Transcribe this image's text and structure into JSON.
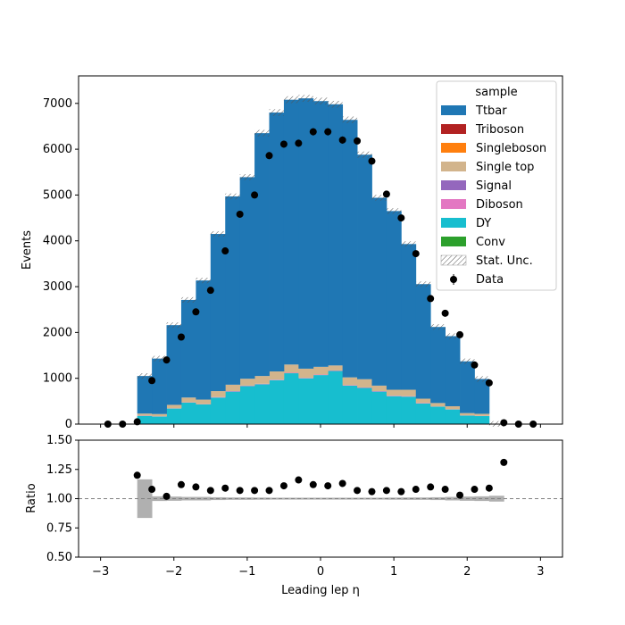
{
  "chart_data": [
    {
      "type": "bar",
      "stacked": true,
      "ylabel": "Events",
      "ylim": [
        0,
        7600
      ],
      "xlim": [
        -3.3,
        3.3
      ],
      "yticks": [
        0,
        1000,
        2000,
        3000,
        4000,
        5000,
        6000,
        7000
      ],
      "x_bin_edges": [
        -2.5,
        -2.3,
        -2.1,
        -1.9,
        -1.7,
        -1.5,
        -1.3,
        -1.1,
        -0.9,
        -0.7,
        -0.5,
        -0.3,
        -0.1,
        0.1,
        0.3,
        0.5,
        0.7,
        0.9,
        1.1,
        1.3,
        1.5,
        1.7,
        1.9,
        2.1,
        2.3,
        2.5
      ],
      "legend": {
        "title": "sample",
        "placement": "top-right",
        "entries": [
          "Ttbar",
          "Triboson",
          "Singleboson",
          "Single top",
          "Signal",
          "Diboson",
          "DY",
          "Conv",
          "Stat. Unc.",
          "Data"
        ]
      },
      "colors": {
        "Ttbar": "#1f77b4",
        "Triboson": "#b22222",
        "Singleboson": "#ff7f0e",
        "Single top": "#d2b48c",
        "Signal": "#9467bd",
        "Diboson": "#e377c2",
        "DY": "#17becf",
        "Conv": "#2ca02c",
        "Data": "#000000"
      },
      "series": [
        {
          "name": "Conv",
          "values": [
            5,
            5,
            10,
            10,
            10,
            10,
            10,
            10,
            10,
            10,
            10,
            10,
            10,
            10,
            10,
            10,
            10,
            10,
            10,
            10,
            10,
            10,
            10,
            5,
            5
          ]
        },
        {
          "name": "DY",
          "values": [
            175,
            160,
            330,
            460,
            420,
            570,
            700,
            820,
            860,
            950,
            1100,
            990,
            1060,
            1150,
            830,
            780,
            700,
            600,
            590,
            440,
            370,
            310,
            175,
            170,
            0
          ]
        },
        {
          "name": "Diboson",
          "values": [
            5,
            5,
            5,
            5,
            5,
            10,
            10,
            10,
            10,
            10,
            10,
            10,
            10,
            10,
            10,
            10,
            10,
            10,
            10,
            10,
            5,
            5,
            5,
            5,
            0
          ]
        },
        {
          "name": "Signal",
          "values": [
            0,
            0,
            0,
            0,
            0,
            0,
            0,
            0,
            0,
            0,
            0,
            0,
            0,
            0,
            0,
            0,
            0,
            0,
            0,
            0,
            0,
            0,
            0,
            0,
            0
          ]
        },
        {
          "name": "Single top",
          "values": [
            45,
            50,
            75,
            105,
            100,
            130,
            140,
            150,
            170,
            180,
            180,
            200,
            170,
            110,
            170,
            180,
            120,
            130,
            140,
            95,
            75,
            65,
            50,
            45,
            0
          ]
        },
        {
          "name": "Singleboson",
          "values": [
            0,
            0,
            0,
            0,
            0,
            0,
            0,
            0,
            0,
            0,
            0,
            0,
            0,
            0,
            0,
            0,
            0,
            0,
            0,
            0,
            0,
            0,
            0,
            0,
            0
          ]
        },
        {
          "name": "Triboson",
          "values": [
            0,
            0,
            0,
            0,
            0,
            0,
            0,
            0,
            0,
            0,
            0,
            0,
            0,
            0,
            0,
            0,
            0,
            0,
            0,
            0,
            0,
            0,
            0,
            0,
            0
          ]
        },
        {
          "name": "Ttbar",
          "values": [
            820,
            1210,
            1740,
            2130,
            2600,
            3430,
            4110,
            4400,
            5300,
            5650,
            5780,
            5900,
            5800,
            5700,
            5620,
            4900,
            4100,
            3900,
            3180,
            2500,
            1660,
            1530,
            1130,
            760,
            0
          ]
        }
      ],
      "data_points": {
        "x": [
          -2.9,
          -2.7,
          -2.5,
          -2.3,
          -2.1,
          -1.9,
          -1.7,
          -1.5,
          -1.3,
          -1.1,
          -0.9,
          -0.7,
          -0.5,
          -0.3,
          -0.1,
          0.1,
          0.3,
          0.5,
          0.7,
          0.9,
          1.1,
          1.3,
          1.5,
          1.7,
          1.9,
          2.1,
          2.3,
          2.5,
          2.7,
          2.9
        ],
        "y": [
          0,
          0,
          50,
          950,
          1400,
          1900,
          2450,
          2920,
          3780,
          4580,
          5000,
          5860,
          6110,
          6130,
          6380,
          6380,
          6200,
          6180,
          5740,
          5020,
          4500,
          3720,
          2740,
          2420,
          1950,
          1290,
          900,
          30,
          0,
          0
        ]
      }
    },
    {
      "type": "scatter",
      "xlabel": "Leading lep η",
      "ylabel": "Ratio",
      "ylim": [
        0.5,
        1.5
      ],
      "xlim": [
        -3.3,
        3.3
      ],
      "xticks": [
        -3,
        -2,
        -1,
        0,
        1,
        2,
        3
      ],
      "yticks": [
        0.5,
        0.75,
        1.0,
        1.25,
        1.5
      ],
      "ytick_labels": [
        "0.50",
        "0.75",
        "1.00",
        "1.25",
        "1.50"
      ],
      "reference_line": 1.0,
      "unc_band": {
        "x_bin_edges": [
          -2.5,
          -2.3,
          -2.1,
          -1.9,
          -1.7,
          -1.5,
          -1.3,
          -1.1,
          -0.9,
          -0.7,
          -0.5,
          -0.3,
          -0.1,
          0.1,
          0.3,
          0.5,
          0.7,
          0.9,
          1.1,
          1.3,
          1.5,
          1.7,
          1.9,
          2.1,
          2.3,
          2.5
        ],
        "half_width": [
          0.165,
          0.02,
          0.018,
          0.015,
          0.015,
          0.012,
          0.01,
          0.01,
          0.009,
          0.008,
          0.008,
          0.008,
          0.008,
          0.008,
          0.008,
          0.008,
          0.008,
          0.009,
          0.01,
          0.01,
          0.012,
          0.015,
          0.018,
          0.02,
          0.025
        ]
      },
      "points": {
        "x": [
          -2.5,
          -2.3,
          -2.1,
          -1.9,
          -1.7,
          -1.5,
          -1.3,
          -1.1,
          -0.9,
          -0.7,
          -0.5,
          -0.3,
          -0.1,
          0.1,
          0.3,
          0.5,
          0.7,
          0.9,
          1.1,
          1.3,
          1.5,
          1.7,
          1.9,
          2.1,
          2.3,
          2.5
        ],
        "y": [
          1.2,
          1.08,
          1.02,
          1.12,
          1.1,
          1.07,
          1.09,
          1.07,
          1.07,
          1.07,
          1.11,
          1.16,
          1.12,
          1.11,
          1.13,
          1.07,
          1.06,
          1.07,
          1.06,
          1.08,
          1.1,
          1.08,
          1.03,
          1.08,
          1.09,
          1.31
        ]
      }
    }
  ]
}
